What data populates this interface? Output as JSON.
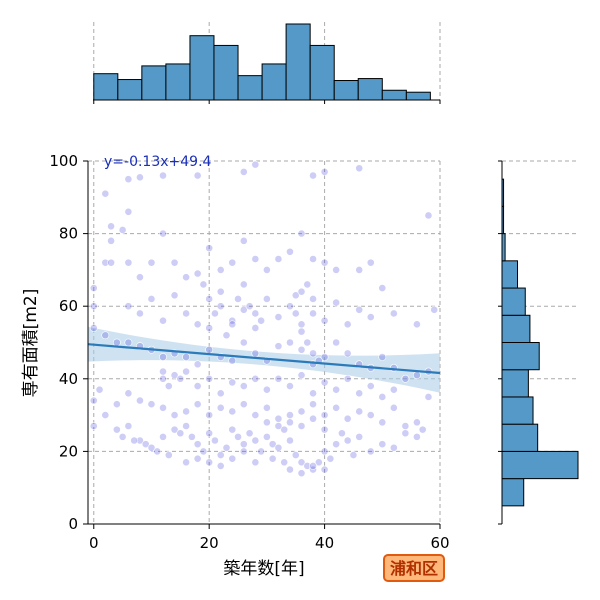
{
  "chart_data": {
    "type": "scatter",
    "xlabel": "築年数[年]",
    "ylabel": "専有面積[m2]",
    "xlim": [
      -1,
      60
    ],
    "ylim": [
      0,
      100
    ],
    "xticks": [
      "0",
      "20",
      "40",
      "60"
    ],
    "yticks": [
      "0",
      "20",
      "40",
      "60",
      "80",
      "100"
    ],
    "grid": true,
    "annotation": "y=-0.13x+49.4",
    "regression": {
      "slope": -0.13,
      "intercept": 49.4,
      "x_range": [
        -1,
        60
      ]
    },
    "badge": "浦和区",
    "colors": {
      "points": "#4a4ae0",
      "regression": "#2b7bba",
      "band": "#a8cbe6",
      "hist": "#5499c7",
      "badge_fill": "#ffb87a",
      "badge_border": "#e05a10"
    },
    "x_histogram": {
      "bin_edges": [
        0,
        4.17,
        8.33,
        12.5,
        16.67,
        20.83,
        25,
        29.17,
        33.33,
        37.5,
        41.67,
        45.83,
        50,
        54.17,
        58.33
      ],
      "counts": [
        27,
        21,
        35,
        37,
        66,
        56,
        25,
        37,
        78,
        56,
        20,
        22,
        10,
        8
      ]
    },
    "y_histogram": {
      "bin_edges": [
        5,
        12.5,
        20,
        27.5,
        35,
        42.5,
        50,
        57.5,
        65,
        72.5,
        80,
        87.5,
        95,
        100
      ],
      "counts": [
        14,
        49,
        23,
        20,
        17,
        24,
        18,
        15,
        10,
        2,
        1,
        1,
        0
      ]
    },
    "points": [
      [
        2,
        91
      ],
      [
        6,
        95
      ],
      [
        8,
        95.5
      ],
      [
        12,
        96
      ],
      [
        18,
        96
      ],
      [
        26,
        97
      ],
      [
        28,
        99
      ],
      [
        38,
        96
      ],
      [
        40,
        97
      ],
      [
        46,
        98
      ],
      [
        2,
        72
      ],
      [
        3,
        78
      ],
      [
        5,
        81
      ],
      [
        3,
        72
      ],
      [
        3,
        82
      ],
      [
        6,
        86
      ],
      [
        0,
        65
      ],
      [
        0,
        60
      ],
      [
        6,
        72
      ],
      [
        8,
        68
      ],
      [
        10,
        72
      ],
      [
        12,
        80
      ],
      [
        14,
        72
      ],
      [
        16,
        68
      ],
      [
        18,
        69
      ],
      [
        20,
        76
      ],
      [
        22,
        70
      ],
      [
        24,
        72
      ],
      [
        26,
        78
      ],
      [
        28,
        73
      ],
      [
        30,
        70
      ],
      [
        32,
        73
      ],
      [
        34,
        75
      ],
      [
        36,
        80
      ],
      [
        38,
        73
      ],
      [
        40,
        72
      ],
      [
        42,
        70
      ],
      [
        46,
        70
      ],
      [
        48,
        72
      ],
      [
        50,
        65
      ],
      [
        6,
        60
      ],
      [
        8,
        58
      ],
      [
        10,
        62
      ],
      [
        12,
        56
      ],
      [
        14,
        63
      ],
      [
        16,
        58
      ],
      [
        18,
        55
      ],
      [
        20,
        54
      ],
      [
        22,
        60
      ],
      [
        24,
        56
      ],
      [
        26,
        59
      ],
      [
        28,
        54
      ],
      [
        30,
        62
      ],
      [
        32,
        57
      ],
      [
        34,
        60
      ],
      [
        36,
        55
      ],
      [
        38,
        58
      ],
      [
        40,
        56
      ],
      [
        42,
        61
      ],
      [
        44,
        55
      ],
      [
        46,
        59
      ],
      [
        48,
        57
      ],
      [
        52,
        58
      ],
      [
        56,
        55
      ],
      [
        59,
        59
      ],
      [
        58,
        85
      ],
      [
        0,
        54
      ],
      [
        2,
        52
      ],
      [
        4,
        50
      ],
      [
        6,
        50
      ],
      [
        8,
        49
      ],
      [
        10,
        48
      ],
      [
        12,
        46
      ],
      [
        14,
        47
      ],
      [
        16,
        46
      ],
      [
        18,
        44
      ],
      [
        20,
        48
      ],
      [
        22,
        46
      ],
      [
        24,
        45
      ],
      [
        26,
        50
      ],
      [
        28,
        47
      ],
      [
        30,
        45
      ],
      [
        32,
        49
      ],
      [
        34,
        50
      ],
      [
        36,
        48
      ],
      [
        38,
        44
      ],
      [
        40,
        46
      ],
      [
        42,
        50
      ],
      [
        44,
        47
      ],
      [
        46,
        44
      ],
      [
        48,
        43
      ],
      [
        50,
        46
      ],
      [
        52,
        43
      ],
      [
        54,
        40
      ],
      [
        56,
        41
      ],
      [
        58,
        42
      ],
      [
        12,
        42
      ],
      [
        12,
        40
      ],
      [
        13,
        38
      ],
      [
        14,
        41
      ],
      [
        15,
        40
      ],
      [
        16,
        42
      ],
      [
        18,
        38
      ],
      [
        20,
        40
      ],
      [
        22,
        36
      ],
      [
        24,
        39
      ],
      [
        26,
        38
      ],
      [
        28,
        40
      ],
      [
        30,
        37
      ],
      [
        32,
        40
      ],
      [
        34,
        38
      ],
      [
        36,
        41
      ],
      [
        38,
        36
      ],
      [
        40,
        39
      ],
      [
        42,
        37
      ],
      [
        44,
        40
      ],
      [
        46,
        36
      ],
      [
        48,
        38
      ],
      [
        50,
        35
      ],
      [
        52,
        37
      ],
      [
        0,
        34
      ],
      [
        1,
        37
      ],
      [
        4,
        33
      ],
      [
        6,
        36
      ],
      [
        8,
        34
      ],
      [
        10,
        33
      ],
      [
        12,
        32
      ],
      [
        14,
        30
      ],
      [
        16,
        31
      ],
      [
        18,
        33
      ],
      [
        20,
        30
      ],
      [
        22,
        32
      ],
      [
        24,
        31
      ],
      [
        26,
        33
      ],
      [
        28,
        30
      ],
      [
        30,
        32
      ],
      [
        32,
        29
      ],
      [
        34,
        30
      ],
      [
        36,
        31
      ],
      [
        38,
        33
      ],
      [
        40,
        30
      ],
      [
        42,
        32
      ],
      [
        44,
        29
      ],
      [
        46,
        31
      ],
      [
        48,
        30
      ],
      [
        50,
        28
      ],
      [
        52,
        32
      ],
      [
        54,
        27
      ],
      [
        56,
        28
      ],
      [
        58,
        35
      ],
      [
        6,
        27
      ],
      [
        8,
        23
      ],
      [
        9,
        22
      ],
      [
        10,
        21
      ],
      [
        11,
        20
      ],
      [
        12,
        24
      ],
      [
        14,
        26
      ],
      [
        15,
        25
      ],
      [
        16,
        27
      ],
      [
        17,
        24
      ],
      [
        18,
        22
      ],
      [
        19,
        20
      ],
      [
        20,
        25
      ],
      [
        21,
        23
      ],
      [
        22,
        19
      ],
      [
        23,
        21
      ],
      [
        24,
        26
      ],
      [
        25,
        24
      ],
      [
        26,
        22
      ],
      [
        27,
        25
      ],
      [
        28,
        23
      ],
      [
        29,
        20
      ],
      [
        30,
        24
      ],
      [
        31,
        22
      ],
      [
        32,
        21
      ],
      [
        33,
        26
      ],
      [
        34,
        23
      ],
      [
        35,
        19
      ],
      [
        36,
        17
      ],
      [
        37,
        16
      ],
      [
        38,
        15
      ],
      [
        39,
        17
      ],
      [
        40,
        20
      ],
      [
        41,
        18
      ],
      [
        42,
        22
      ],
      [
        43,
        25
      ],
      [
        44,
        23
      ],
      [
        45,
        19
      ],
      [
        46,
        24
      ],
      [
        48,
        20
      ],
      [
        50,
        22
      ],
      [
        52,
        21
      ],
      [
        54,
        25
      ],
      [
        56,
        24
      ],
      [
        57,
        26
      ],
      [
        0,
        27
      ],
      [
        2,
        30
      ],
      [
        4,
        26
      ],
      [
        5,
        24
      ],
      [
        7,
        23
      ],
      [
        13,
        19
      ],
      [
        16,
        17
      ],
      [
        18,
        18
      ],
      [
        20,
        17
      ],
      [
        22,
        16
      ],
      [
        24,
        18
      ],
      [
        26,
        20
      ],
      [
        28,
        17
      ],
      [
        31,
        18
      ],
      [
        33,
        17
      ],
      [
        34,
        15
      ],
      [
        36,
        14
      ],
      [
        38,
        16
      ],
      [
        40,
        15
      ],
      [
        30,
        28
      ],
      [
        32,
        27
      ],
      [
        34,
        28
      ],
      [
        36,
        27
      ],
      [
        38,
        29
      ],
      [
        40,
        26
      ],
      [
        35,
        63
      ],
      [
        36,
        64
      ],
      [
        37,
        66
      ],
      [
        38,
        62
      ],
      [
        35,
        58
      ],
      [
        36,
        53
      ],
      [
        37,
        50
      ],
      [
        38,
        47
      ],
      [
        39,
        45
      ],
      [
        20,
        62
      ],
      [
        21,
        58
      ],
      [
        22,
        64
      ],
      [
        19,
        66
      ],
      [
        23,
        52
      ],
      [
        24,
        55
      ],
      [
        25,
        62
      ],
      [
        26,
        66
      ],
      [
        27,
        60
      ],
      [
        28,
        58
      ],
      [
        29,
        56
      ]
    ]
  }
}
